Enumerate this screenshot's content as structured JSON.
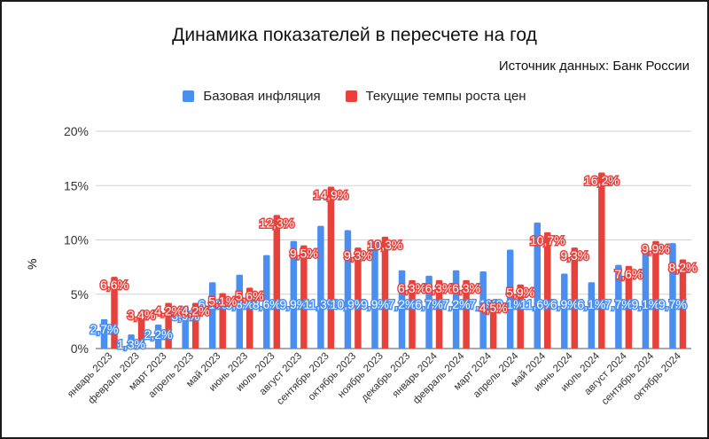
{
  "chart_data": {
    "type": "bar",
    "title": "Динамика показателей в пересчете на год",
    "subtitle": "Источник данных: Банк России",
    "ylabel": "%",
    "ylim": [
      0,
      20
    ],
    "yticks": [
      "0%",
      "5%",
      "10%",
      "15%",
      "20%"
    ],
    "legend_position": "top-center",
    "grid": true,
    "categories": [
      "январь 2023",
      "февраль 2023",
      "март 2023",
      "апрель 2023",
      "май 2023",
      "июнь 2023",
      "июль 2023",
      "август 2023",
      "сентябрь 2023",
      "октябрь 2023",
      "ноябрь 2023",
      "декабрь 2023",
      "январь 2024",
      "февраль 2024",
      "март 2024",
      "апрель 2024",
      "май 2024",
      "июнь 2024",
      "июль 2024",
      "август 2024",
      "сентябрь 2024",
      "октябрь 2024"
    ],
    "series": [
      {
        "name": "Базовая инфляция",
        "color": "#4a8ef0",
        "values": [
          2.7,
          1.3,
          2.2,
          3.9,
          6.1,
          6.8,
          8.6,
          9.9,
          11.3,
          10.9,
          9.9,
          7.2,
          6.7,
          7.2,
          7.1,
          9.1,
          11.6,
          6.9,
          6.1,
          7.7,
          9.1,
          9.7
        ],
        "labels": [
          "2,7%",
          "1,3%",
          "2,2%",
          "3,9%",
          "6,1%",
          "6,8%",
          "8,6%",
          "9,9%",
          "11,3%",
          "10,9%",
          "9,9%",
          "7,2%",
          "6,7%",
          "7,2%",
          "7,1%",
          "9,1%",
          "11,6%",
          "6,9%",
          "6,1%",
          "7,7%",
          "9,1%",
          "9,7%"
        ]
      },
      {
        "name": "Текущие темпы роста цен",
        "color": "#e8413c",
        "values": [
          6.6,
          3.4,
          4.2,
          4.2,
          5.1,
          5.6,
          12.3,
          9.5,
          14.9,
          9.3,
          10.3,
          6.3,
          6.3,
          6.3,
          4.5,
          5.9,
          10.7,
          9.3,
          16.2,
          7.6,
          9.9,
          8.2
        ],
        "labels": [
          "6,6%",
          "3,4%",
          "4,2%",
          "4,2%",
          "5,1%",
          "5,6%",
          "12,3%",
          "9,5%",
          "14,9%",
          "9,3%",
          "10,3%",
          "6,3%",
          "6,3%",
          "6,3%",
          "4,5%",
          "5,9%",
          "10,7%",
          "9,3%",
          "16,2%",
          "7,6%",
          "9,9%",
          "8,2%"
        ]
      }
    ]
  }
}
